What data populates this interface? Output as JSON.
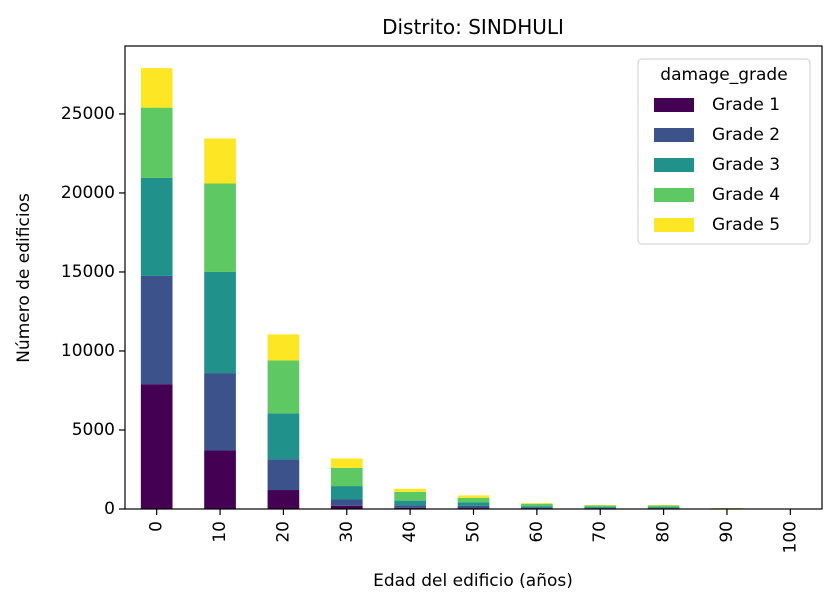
{
  "chart_data": {
    "type": "bar",
    "stacked": true,
    "title": "Distrito: SINDHULI",
    "xlabel": "Edad del edificio (años)",
    "ylabel": "Número de edificios",
    "categories": [
      "0",
      "10",
      "20",
      "30",
      "40",
      "50",
      "60",
      "70",
      "80",
      "90",
      "100"
    ],
    "yticks": [
      "0",
      "5000",
      "10000",
      "15000",
      "20000",
      "25000"
    ],
    "ylim": [
      0,
      29300
    ],
    "legend_title": "damage_grade",
    "legend_position": "top-right",
    "grid": false,
    "series": [
      {
        "name": "Grade 1",
        "color": "#440154",
        "values": [
          7900,
          3700,
          1200,
          200,
          80,
          60,
          30,
          20,
          20,
          5,
          2
        ]
      },
      {
        "name": "Grade 2",
        "color": "#3b528b",
        "values": [
          6850,
          4900,
          1950,
          400,
          150,
          150,
          60,
          40,
          40,
          10,
          3
        ]
      },
      {
        "name": "Grade 3",
        "color": "#21918c",
        "values": [
          6200,
          6400,
          2900,
          850,
          300,
          200,
          90,
          60,
          60,
          15,
          5
        ]
      },
      {
        "name": "Grade 4",
        "color": "#5ec962",
        "values": [
          4450,
          5600,
          3350,
          1150,
          550,
          300,
          150,
          100,
          100,
          20,
          8
        ]
      },
      {
        "name": "Grade 5",
        "color": "#fde725",
        "values": [
          2500,
          2850,
          1650,
          600,
          200,
          150,
          50,
          30,
          30,
          10,
          4
        ]
      }
    ]
  }
}
